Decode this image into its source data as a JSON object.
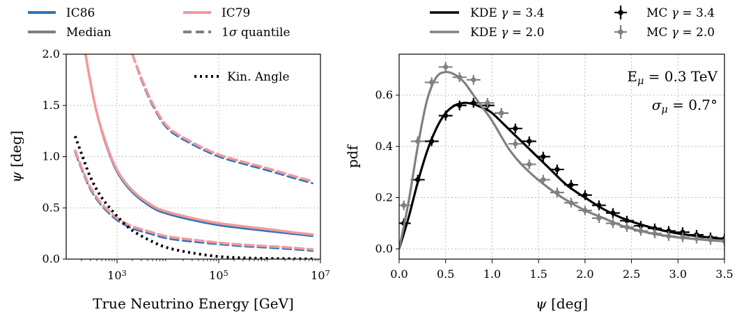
{
  "legend_left": [
    {
      "label": "IC86",
      "color": "#2e75b6",
      "style": "solid"
    },
    {
      "label": "IC79",
      "color": "#f4989a",
      "style": "solid"
    },
    {
      "label": "Median",
      "color": "#808080",
      "style": "solid"
    },
    {
      "label": "1σ quantile",
      "color": "#808080",
      "style": "dashed"
    }
  ],
  "legend_right": [
    {
      "label": "KDE γ = 3.4",
      "color": "#000000",
      "style": "line"
    },
    {
      "label": "MC γ = 3.4",
      "color": "#000000",
      "style": "errorbar"
    },
    {
      "label": "KDE γ = 2.0",
      "color": "#808080",
      "style": "line"
    },
    {
      "label": "MC γ = 2.0",
      "color": "#808080",
      "style": "errorbar"
    }
  ],
  "annotations": {
    "kin_angle": "Kin. Angle",
    "energy": "E_μ = 0.3 TeV",
    "sigma": "σ_μ = 0.7°"
  },
  "chart_data": [
    {
      "type": "line",
      "xlabel": "True Neutrino Energy [GeV]",
      "ylabel": "ψ [deg]",
      "xscale": "log",
      "xlim": [
        100,
        10000000
      ],
      "ylim": [
        0,
        2.0
      ],
      "x_ticks": [
        "10^3",
        "10^5",
        "10^7"
      ],
      "y_ticks": [
        "0.0",
        "0.5",
        "1.0",
        "1.5",
        "2.0"
      ],
      "grid": true,
      "legend_position": "top-right",
      "series": [
        {
          "name": "IC86",
          "role": "median",
          "x": [
            240,
            300,
            400,
            600,
            1000,
            2000,
            5000,
            10000,
            30000,
            100000,
            300000,
            1000000,
            3000000,
            7000000
          ],
          "values": [
            2.0,
            1.72,
            1.42,
            1.12,
            0.85,
            0.65,
            0.5,
            0.44,
            0.38,
            0.33,
            0.3,
            0.27,
            0.245,
            0.225
          ]
        },
        {
          "name": "IC79",
          "role": "median",
          "x": [
            240,
            300,
            400,
            600,
            1000,
            2000,
            5000,
            10000,
            30000,
            100000,
            300000,
            1000000,
            3000000,
            7000000
          ],
          "values": [
            2.0,
            1.73,
            1.43,
            1.14,
            0.87,
            0.67,
            0.52,
            0.46,
            0.4,
            0.35,
            0.32,
            0.29,
            0.26,
            0.24
          ]
        },
        {
          "name": "IC86",
          "role": "upper 1σ",
          "x": [
            2000,
            3000,
            5000,
            10000,
            30000,
            100000,
            300000,
            1000000,
            3000000,
            7000000
          ],
          "values": [
            2.0,
            1.75,
            1.5,
            1.27,
            1.12,
            1.0,
            0.93,
            0.86,
            0.79,
            0.74
          ]
        },
        {
          "name": "IC79",
          "role": "upper 1σ",
          "x": [
            2000,
            3000,
            5000,
            10000,
            30000,
            100000,
            300000,
            1000000,
            3000000,
            7000000
          ],
          "values": [
            2.0,
            1.77,
            1.52,
            1.29,
            1.14,
            1.02,
            0.95,
            0.88,
            0.81,
            0.76
          ]
        },
        {
          "name": "IC86",
          "role": "lower 1σ",
          "x": [
            150,
            200,
            300,
            500,
            1000,
            2000,
            5000,
            10000,
            30000,
            100000,
            300000,
            1000000,
            3000000,
            7000000
          ],
          "values": [
            1.04,
            0.88,
            0.68,
            0.52,
            0.38,
            0.3,
            0.24,
            0.2,
            0.17,
            0.145,
            0.125,
            0.11,
            0.095,
            0.08
          ]
        },
        {
          "name": "IC79",
          "role": "lower 1σ",
          "x": [
            150,
            200,
            300,
            500,
            1000,
            2000,
            5000,
            10000,
            30000,
            100000,
            300000,
            1000000,
            3000000,
            7000000
          ],
          "values": [
            1.06,
            0.9,
            0.7,
            0.54,
            0.4,
            0.32,
            0.26,
            0.22,
            0.19,
            0.16,
            0.14,
            0.125,
            0.11,
            0.095
          ]
        },
        {
          "name": "Kin. Angle",
          "role": "kinematic",
          "x": [
            150,
            200,
            300,
            500,
            1000,
            2000,
            5000,
            10000,
            30000,
            100000,
            300000,
            1000000,
            3000000,
            7000000
          ],
          "values": [
            1.2,
            1.03,
            0.8,
            0.6,
            0.42,
            0.28,
            0.17,
            0.11,
            0.06,
            0.025,
            0.012,
            0.006,
            0.003,
            0.002
          ]
        }
      ]
    },
    {
      "type": "line",
      "xlabel": "ψ [deg]",
      "ylabel": "pdf",
      "xlim": [
        0,
        3.5
      ],
      "ylim": [
        -0.04,
        0.76
      ],
      "x_ticks": [
        "0.0",
        "0.5",
        "1.0",
        "1.5",
        "2.0",
        "2.5",
        "3.0",
        "3.5"
      ],
      "y_ticks": [
        "0.0",
        "0.2",
        "0.4",
        "0.6"
      ],
      "grid": true,
      "legend_position": "top",
      "series": [
        {
          "name": "KDE γ = 3.4",
          "x": [
            0,
            0.1,
            0.2,
            0.3,
            0.4,
            0.5,
            0.6,
            0.7,
            0.8,
            0.9,
            1.0,
            1.2,
            1.4,
            1.6,
            1.8,
            2.0,
            2.2,
            2.4,
            2.6,
            2.8,
            3.0,
            3.2,
            3.4,
            3.5
          ],
          "values": [
            0,
            0.12,
            0.26,
            0.38,
            0.47,
            0.53,
            0.56,
            0.57,
            0.565,
            0.55,
            0.53,
            0.46,
            0.39,
            0.32,
            0.25,
            0.2,
            0.155,
            0.12,
            0.095,
            0.075,
            0.06,
            0.05,
            0.042,
            0.04
          ]
        },
        {
          "name": "MC γ = 3.4",
          "x": [
            0.05,
            0.2,
            0.35,
            0.5,
            0.65,
            0.8,
            0.95,
            1.1,
            1.25,
            1.4,
            1.55,
            1.7,
            1.85,
            2.0,
            2.15,
            2.3,
            2.45,
            2.6,
            2.75,
            2.9,
            3.05,
            3.2,
            3.35,
            3.5
          ],
          "values": [
            0.1,
            0.27,
            0.42,
            0.52,
            0.56,
            0.57,
            0.56,
            0.53,
            0.47,
            0.42,
            0.36,
            0.31,
            0.25,
            0.21,
            0.17,
            0.14,
            0.11,
            0.09,
            0.08,
            0.07,
            0.065,
            0.055,
            0.045,
            0.04
          ]
        },
        {
          "name": "KDE γ = 2.0",
          "x": [
            0,
            0.1,
            0.2,
            0.3,
            0.4,
            0.5,
            0.6,
            0.7,
            0.8,
            0.9,
            1.0,
            1.2,
            1.4,
            1.6,
            1.8,
            2.0,
            2.2,
            2.4,
            2.6,
            2.8,
            3.0,
            3.2,
            3.4,
            3.5
          ],
          "values": [
            0,
            0.18,
            0.4,
            0.58,
            0.67,
            0.69,
            0.68,
            0.65,
            0.6,
            0.55,
            0.5,
            0.38,
            0.3,
            0.24,
            0.19,
            0.15,
            0.12,
            0.09,
            0.07,
            0.055,
            0.045,
            0.038,
            0.032,
            0.03
          ]
        },
        {
          "name": "MC γ = 2.0",
          "x": [
            0.05,
            0.2,
            0.35,
            0.5,
            0.65,
            0.8,
            0.95,
            1.1,
            1.25,
            1.4,
            1.55,
            1.7,
            1.85,
            2.0,
            2.15,
            2.3,
            2.45,
            2.6,
            2.75,
            2.9,
            3.05,
            3.2,
            3.35,
            3.5
          ],
          "values": [
            0.17,
            0.42,
            0.65,
            0.71,
            0.67,
            0.66,
            0.57,
            0.53,
            0.41,
            0.33,
            0.27,
            0.22,
            0.18,
            0.15,
            0.12,
            0.1,
            0.085,
            0.07,
            0.06,
            0.05,
            0.045,
            0.04,
            0.035,
            0.03
          ]
        }
      ]
    }
  ]
}
